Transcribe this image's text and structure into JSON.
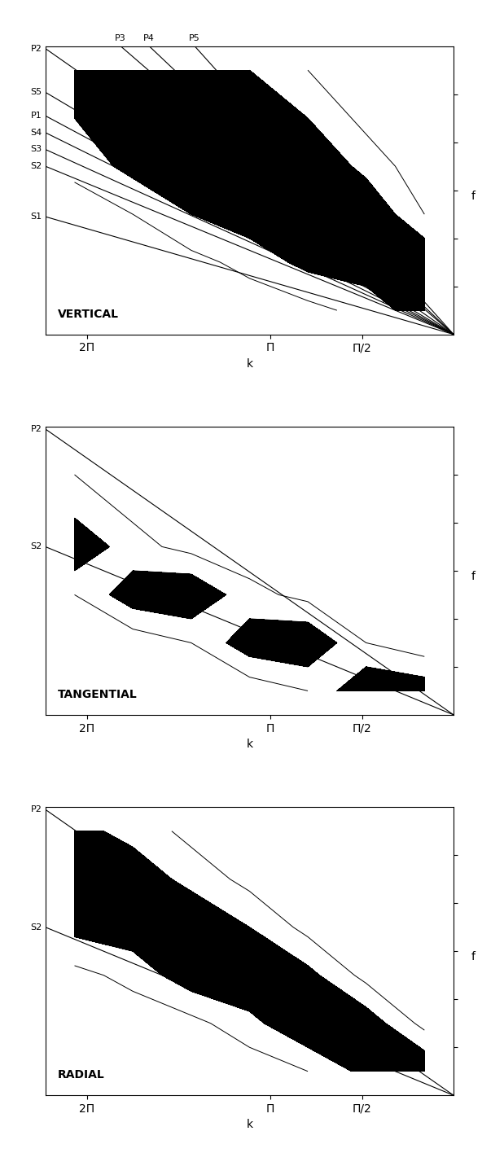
{
  "chart_data": [
    {
      "type": "contour",
      "title": "VERTICAL",
      "x_label": "k",
      "y_label": "f",
      "xlim": [
        0,
        7
      ],
      "ylim": [
        0,
        6
      ],
      "xticks": [
        {
          "value": 6.2832,
          "label": "2Π"
        },
        {
          "value": 3.1416,
          "label": "Π"
        },
        {
          "value": 1.5708,
          "label": "Π/2"
        }
      ],
      "yticks": [
        1,
        2,
        3,
        4,
        5
      ],
      "tick_labels": "x",
      "cell_x": [
        0.5,
        1.5,
        2.5,
        3.5,
        4.5,
        5.5,
        6.5
      ],
      "cell_y": [
        0.5,
        1.5,
        2.5,
        3.5,
        4.5,
        5.5
      ],
      "levels": [
        0.3,
        0.6
      ],
      "cells": [
        [
          0.8,
          0.4,
          0.2,
          0.1,
          0.0,
          0.0,
          0.0
        ],
        [
          0.9,
          0.8,
          0.7,
          0.4,
          0.2,
          0.1,
          0.0
        ],
        [
          0.3,
          0.9,
          0.8,
          0.8,
          0.6,
          0.3,
          0.1
        ],
        [
          0.1,
          0.5,
          0.9,
          0.8,
          0.9,
          0.7,
          0.4
        ],
        [
          0.0,
          0.2,
          0.6,
          0.9,
          0.8,
          0.8,
          0.6
        ],
        [
          0.0,
          0.1,
          0.3,
          0.6,
          0.8,
          0.9,
          0.8
        ]
      ],
      "series": [
        {
          "name": "S1",
          "x": [
            0,
            7
          ],
          "values": [
            0,
            2.45
          ]
        },
        {
          "name": "S2",
          "x": [
            0,
            7
          ],
          "values": [
            0,
            3.5
          ]
        },
        {
          "name": "S3",
          "x": [
            0,
            7
          ],
          "values": [
            0,
            3.85
          ]
        },
        {
          "name": "S4",
          "x": [
            0,
            7
          ],
          "values": [
            0,
            4.2
          ]
        },
        {
          "name": "P1",
          "x": [
            0,
            7
          ],
          "values": [
            0,
            4.55
          ]
        },
        {
          "name": "S5",
          "x": [
            0,
            7
          ],
          "values": [
            0,
            5.04
          ]
        },
        {
          "name": "P2",
          "x": [
            0,
            7
          ],
          "values": [
            0,
            5.95
          ]
        },
        {
          "name": "P3",
          "x": [
            0,
            5.71
          ],
          "values": [
            0,
            6
          ]
        },
        {
          "name": "P4",
          "x": [
            0,
            5.22
          ],
          "values": [
            0,
            6
          ]
        },
        {
          "name": "P5",
          "x": [
            0,
            4.44
          ],
          "values": [
            0,
            6
          ]
        }
      ]
    },
    {
      "type": "contour",
      "title": "TANGENTIAL",
      "x_label": "k",
      "y_label": "f",
      "xlim": [
        0,
        7
      ],
      "ylim": [
        0,
        6
      ],
      "xticks": [
        {
          "value": 6.2832,
          "label": "2Π"
        },
        {
          "value": 3.1416,
          "label": "Π"
        },
        {
          "value": 1.5708,
          "label": "Π/2"
        }
      ],
      "yticks": [
        1,
        2,
        3,
        4,
        5
      ],
      "tick_labels": "x",
      "cell_x": [
        0.5,
        1.5,
        2.5,
        3.5,
        4.5,
        5.5,
        6.5
      ],
      "cell_y": [
        0.5,
        1.5,
        2.5,
        3.5,
        4.5,
        5.5
      ],
      "levels": [
        0.3,
        0.6
      ],
      "cells": [
        [
          0.8,
          0.9,
          0.3,
          0.1,
          0.0,
          0.0,
          0.0
        ],
        [
          0.1,
          0.3,
          0.9,
          0.8,
          0.3,
          0.1,
          0.0
        ],
        [
          0.0,
          0.1,
          0.2,
          0.4,
          0.9,
          0.8,
          0.3
        ],
        [
          0.0,
          0.0,
          0.1,
          0.1,
          0.2,
          0.4,
          0.9
        ],
        [
          0.0,
          0.0,
          0.0,
          0.0,
          0.1,
          0.2,
          0.4
        ],
        [
          0.0,
          0.0,
          0.0,
          0.0,
          0.0,
          0.1,
          0.2
        ]
      ],
      "series": [
        {
          "name": "S2",
          "x": [
            0,
            7
          ],
          "values": [
            0,
            3.5
          ]
        },
        {
          "name": "P2",
          "x": [
            0,
            7
          ],
          "values": [
            0,
            5.95
          ]
        }
      ]
    },
    {
      "type": "contour",
      "title": "RADIAL",
      "x_label": "k",
      "y_label": "f",
      "xlim": [
        0,
        7
      ],
      "ylim": [
        0,
        6
      ],
      "xticks": [
        {
          "value": 6.2832,
          "label": "2Π"
        },
        {
          "value": 3.1416,
          "label": "Π"
        },
        {
          "value": 1.5708,
          "label": "Π/2"
        }
      ],
      "yticks": [
        1,
        2,
        3,
        4,
        5
      ],
      "tick_labels": "x",
      "cell_x": [
        0.5,
        1.5,
        2.5,
        3.5,
        4.5,
        5.5,
        6.5
      ],
      "cell_y": [
        0.5,
        1.5,
        2.5,
        3.5,
        4.5,
        5.5
      ],
      "levels": [
        0.3,
        0.6
      ],
      "cells": [
        [
          0.9,
          0.7,
          0.3,
          0.1,
          0.0,
          0.0,
          0.0
        ],
        [
          0.2,
          0.8,
          0.9,
          0.5,
          0.2,
          0.1,
          0.0
        ],
        [
          0.0,
          0.2,
          0.7,
          0.9,
          0.8,
          0.4,
          0.2
        ],
        [
          0.0,
          0.0,
          0.2,
          0.6,
          0.9,
          0.8,
          0.7
        ],
        [
          0.0,
          0.0,
          0.0,
          0.2,
          0.5,
          0.8,
          0.9
        ],
        [
          0.0,
          0.0,
          0.0,
          0.1,
          0.2,
          0.5,
          0.7
        ]
      ],
      "series": [
        {
          "name": "S2",
          "x": [
            0,
            7
          ],
          "values": [
            0,
            3.5
          ]
        },
        {
          "name": "P2",
          "x": [
            0,
            7
          ],
          "values": [
            0,
            5.95
          ]
        }
      ]
    }
  ]
}
